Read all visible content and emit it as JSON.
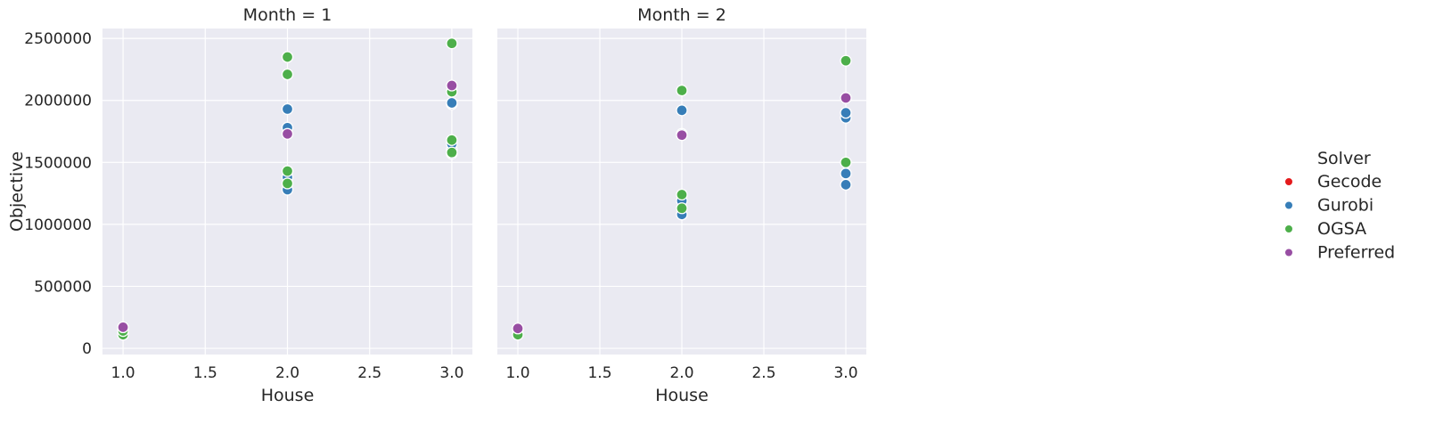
{
  "chart_data": {
    "type": "scatter",
    "xlabel": "House",
    "ylabel": "Objective",
    "xlim": [
      0.875,
      3.125
    ],
    "ylim": [
      -50000,
      2580000
    ],
    "xticks": [
      "1.0",
      "1.5",
      "2.0",
      "2.5",
      "3.0"
    ],
    "yticks": [
      "0",
      "500000",
      "1000000",
      "1500000",
      "2000000",
      "2500000"
    ],
    "grid": true,
    "legend": {
      "title": "Solver",
      "placement": "right",
      "entries": [
        {
          "name": "Gecode",
          "color": "#e41a1c"
        },
        {
          "name": "Gurobi",
          "color": "#377eb8"
        },
        {
          "name": "OGSA",
          "color": "#4daf4a"
        },
        {
          "name": "Preferred",
          "color": "#984ea3"
        }
      ]
    },
    "panels": [
      {
        "title": "Month = 1",
        "series": [
          {
            "name": "Gurobi",
            "points": [
              [
                1.0,
                150000
              ],
              [
                2.0,
                1280000
              ],
              [
                2.0,
                1380000
              ],
              [
                2.0,
                1780000
              ],
              [
                2.0,
                1930000
              ],
              [
                3.0,
                1570000
              ],
              [
                3.0,
                1600000
              ],
              [
                3.0,
                1650000
              ],
              [
                3.0,
                1970000
              ],
              [
                3.0,
                1980000
              ]
            ]
          },
          {
            "name": "OGSA",
            "points": [
              [
                1.0,
                110000
              ],
              [
                1.0,
                140000
              ],
              [
                2.0,
                1330000
              ],
              [
                2.0,
                1430000
              ],
              [
                2.0,
                2210000
              ],
              [
                2.0,
                2350000
              ],
              [
                3.0,
                1580000
              ],
              [
                3.0,
                1680000
              ],
              [
                3.0,
                2070000
              ],
              [
                3.0,
                2460000
              ]
            ]
          },
          {
            "name": "Preferred",
            "points": [
              [
                1.0,
                170000
              ],
              [
                2.0,
                1730000
              ],
              [
                3.0,
                2120000
              ]
            ]
          }
        ]
      },
      {
        "title": "Month = 2",
        "series": [
          {
            "name": "Gurobi",
            "points": [
              [
                1.0,
                150000
              ],
              [
                2.0,
                1080000
              ],
              [
                2.0,
                1190000
              ],
              [
                2.0,
                1730000
              ],
              [
                2.0,
                1920000
              ],
              [
                3.0,
                1320000
              ],
              [
                3.0,
                1410000
              ],
              [
                3.0,
                1860000
              ],
              [
                3.0,
                1900000
              ]
            ]
          },
          {
            "name": "OGSA",
            "points": [
              [
                1.0,
                110000
              ],
              [
                2.0,
                1130000
              ],
              [
                2.0,
                1240000
              ],
              [
                2.0,
                2080000
              ],
              [
                3.0,
                1500000
              ],
              [
                3.0,
                2320000
              ]
            ]
          },
          {
            "name": "Preferred",
            "points": [
              [
                1.0,
                160000
              ],
              [
                2.0,
                1720000
              ],
              [
                3.0,
                2020000
              ]
            ]
          }
        ]
      }
    ]
  }
}
